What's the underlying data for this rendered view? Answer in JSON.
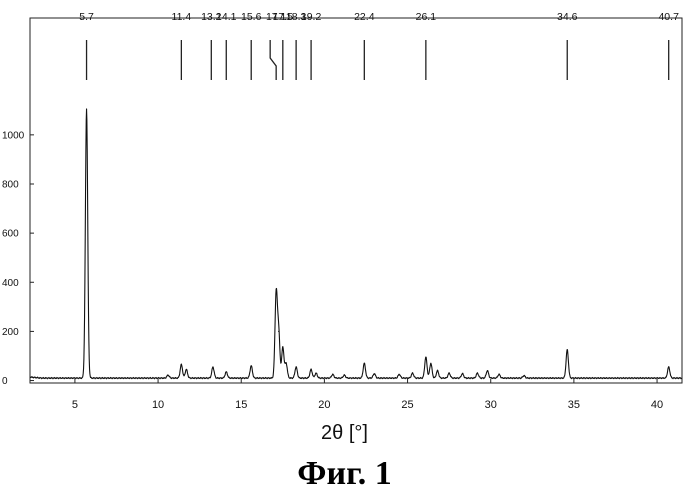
{
  "figure_caption": "Фиг. 1",
  "chart_data": {
    "type": "line",
    "xlabel": "2θ [°]",
    "ylabel": "",
    "xlim": [
      2.3,
      41.5
    ],
    "ylim": [
      -10,
      1150
    ],
    "x_ticks": [
      5,
      10,
      15,
      20,
      25,
      30,
      35,
      40
    ],
    "y_ticks": [
      0,
      200,
      400,
      600,
      800,
      1000
    ],
    "baseline": 10,
    "peak_marker_labels": [
      "5.7",
      "11.4",
      "13.2",
      "14.1",
      "15.6",
      "17.1",
      "17.5",
      "18.3",
      "19.2",
      "22.4",
      "26.1",
      "34.6",
      "40.7"
    ],
    "peaks": [
      {
        "x": 5.7,
        "y": 1105
      },
      {
        "x": 10.6,
        "y": 22
      },
      {
        "x": 11.4,
        "y": 65
      },
      {
        "x": 11.7,
        "y": 45
      },
      {
        "x": 13.3,
        "y": 55
      },
      {
        "x": 14.1,
        "y": 35
      },
      {
        "x": 15.6,
        "y": 60
      },
      {
        "x": 17.1,
        "y": 355
      },
      {
        "x": 17.25,
        "y": 200
      },
      {
        "x": 17.5,
        "y": 135
      },
      {
        "x": 17.7,
        "y": 70
      },
      {
        "x": 18.3,
        "y": 55
      },
      {
        "x": 19.2,
        "y": 45
      },
      {
        "x": 19.5,
        "y": 30
      },
      {
        "x": 20.5,
        "y": 25
      },
      {
        "x": 21.2,
        "y": 22
      },
      {
        "x": 22.4,
        "y": 70
      },
      {
        "x": 23.0,
        "y": 28
      },
      {
        "x": 24.5,
        "y": 25
      },
      {
        "x": 25.3,
        "y": 30
      },
      {
        "x": 26.1,
        "y": 95
      },
      {
        "x": 26.4,
        "y": 70
      },
      {
        "x": 26.8,
        "y": 40
      },
      {
        "x": 27.5,
        "y": 30
      },
      {
        "x": 28.3,
        "y": 28
      },
      {
        "x": 29.2,
        "y": 30
      },
      {
        "x": 29.8,
        "y": 40
      },
      {
        "x": 30.5,
        "y": 25
      },
      {
        "x": 32.0,
        "y": 20
      },
      {
        "x": 34.6,
        "y": 125
      },
      {
        "x": 40.7,
        "y": 55
      }
    ]
  }
}
